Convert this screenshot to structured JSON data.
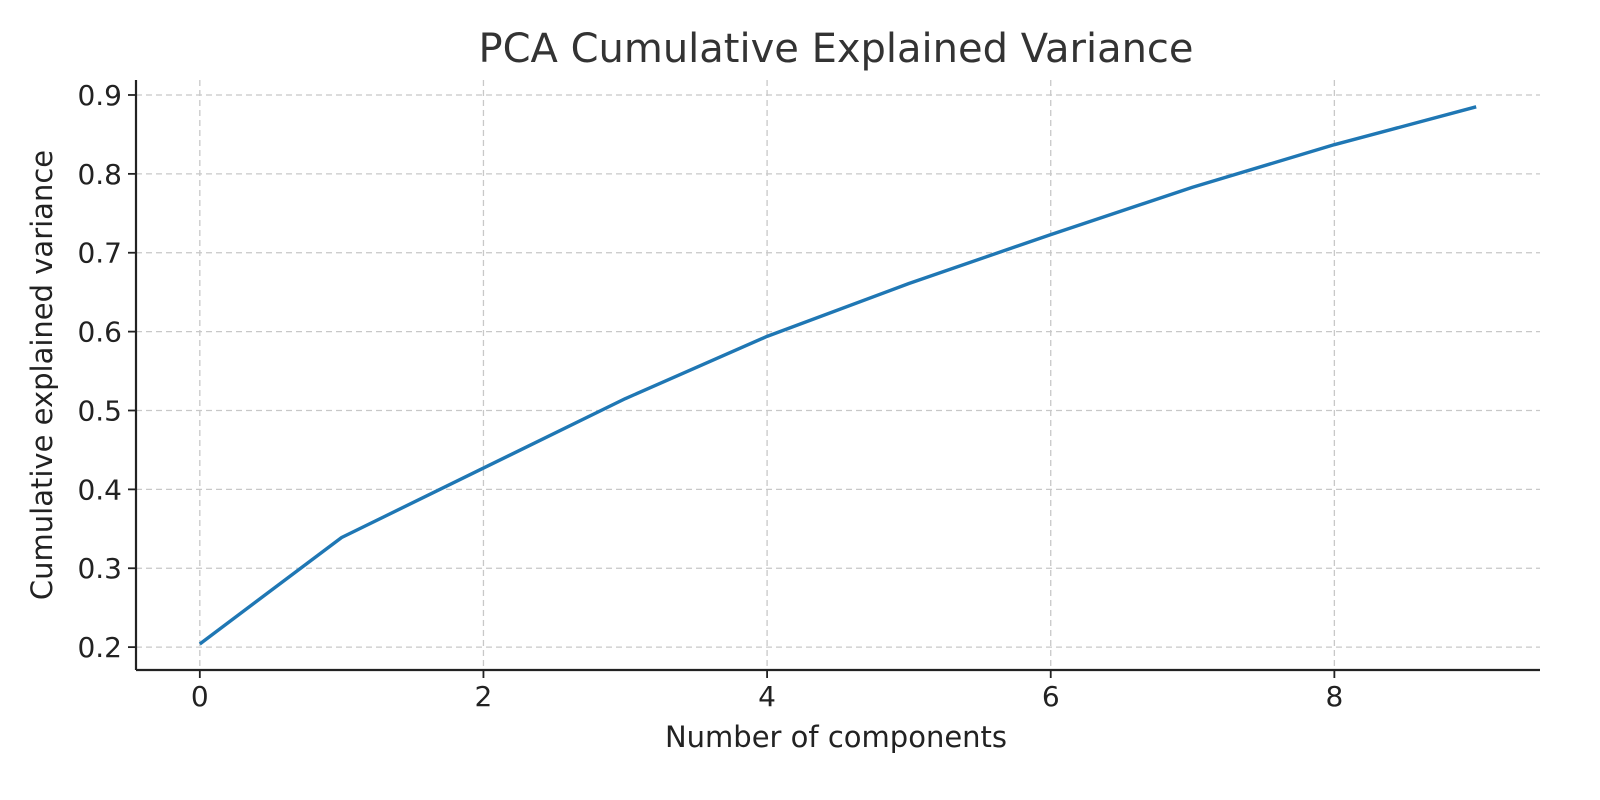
{
  "chart_data": {
    "type": "line",
    "title": "PCA Cumulative Explained Variance",
    "xlabel": "Number of components",
    "ylabel": "Cumulative explained variance",
    "x": [
      0,
      1,
      2,
      3,
      4,
      5,
      6,
      7,
      8,
      9
    ],
    "series": [
      {
        "values": [
          0.204,
          0.339,
          0.427,
          0.515,
          0.594,
          0.661,
          0.723,
          0.783,
          0.837,
          0.885
        ],
        "color": "#1f77b4"
      }
    ],
    "xticks": [
      0,
      2,
      4,
      6,
      8
    ],
    "yticks": [
      0.2,
      0.3,
      0.4,
      0.5,
      0.6,
      0.7,
      0.8,
      0.9
    ],
    "xlim": [
      -0.45,
      9.45
    ],
    "ylim": [
      0.171,
      0.919
    ],
    "grid": true,
    "legend": "none"
  }
}
